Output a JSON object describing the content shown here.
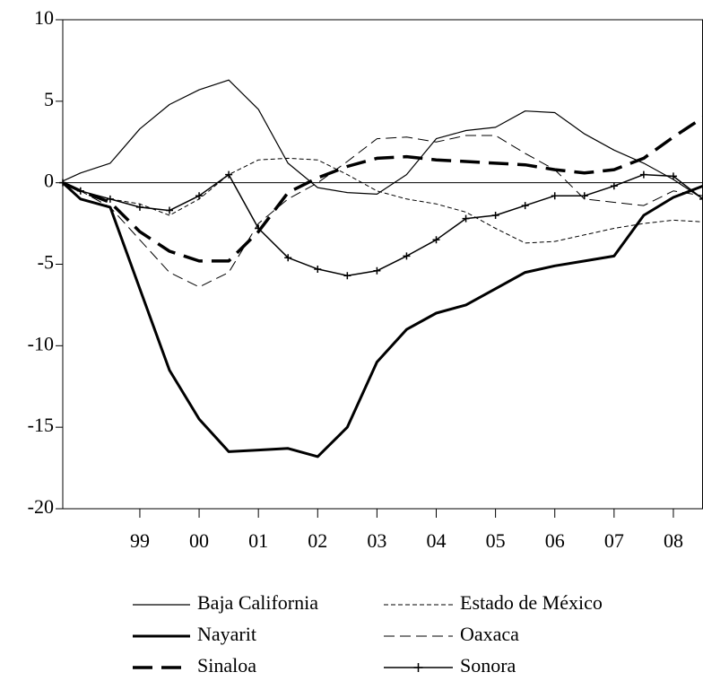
{
  "chart_data": {
    "type": "line",
    "x": [
      1998.2,
      1998.5,
      1999.0,
      1999.5,
      2000.0,
      2000.5,
      2001.0,
      2001.5,
      2002.0,
      2002.5,
      2003.0,
      2003.5,
      2004.0,
      2004.5,
      2005.0,
      2005.5,
      2006.0,
      2006.5,
      2007.0,
      2007.5,
      2008.0,
      2008.5,
      2009.0
    ],
    "xlim": [
      1998.2,
      2009.0
    ],
    "xticks": [
      {
        "value": 1999.5,
        "label": "99"
      },
      {
        "value": 2000.5,
        "label": "00"
      },
      {
        "value": 2001.5,
        "label": "01"
      },
      {
        "value": 2002.5,
        "label": "02"
      },
      {
        "value": 2003.5,
        "label": "03"
      },
      {
        "value": 2004.5,
        "label": "04"
      },
      {
        "value": 2005.5,
        "label": "05"
      },
      {
        "value": 2006.5,
        "label": "06"
      },
      {
        "value": 2007.5,
        "label": "07"
      },
      {
        "value": 2008.5,
        "label": "08"
      }
    ],
    "ylim": [
      -20,
      10
    ],
    "yticks": [
      -20,
      -15,
      -10,
      -5,
      0,
      5,
      10
    ],
    "zero_line": true,
    "series": [
      {
        "name": "Baja California",
        "color": "#000000",
        "width": 1.2,
        "dash": "none",
        "values": [
          0.1,
          0.6,
          1.2,
          3.3,
          4.8,
          5.7,
          6.3,
          4.5,
          1.2,
          -0.3,
          -0.6,
          -0.7,
          0.5,
          2.7,
          3.2,
          3.4,
          4.4,
          4.3,
          3.0,
          2.0,
          1.2,
          0.2,
          -1.0
        ]
      },
      {
        "name": "Estado de México",
        "color": "#000000",
        "width": 1,
        "dash": "5,3",
        "values": [
          0,
          -0.5,
          -1.0,
          -1.3,
          -2.0,
          -1.0,
          0.5,
          1.4,
          1.5,
          1.4,
          0.5,
          -0.5,
          -1.0,
          -1.3,
          -1.8,
          -2.8,
          -3.7,
          -3.6,
          -3.2,
          -2.8,
          -2.5,
          -2.3,
          -2.4
        ]
      },
      {
        "name": "Nayarit",
        "color": "#000000",
        "width": 3,
        "dash": "none",
        "values": [
          0,
          -1.0,
          -1.5,
          -6.5,
          -11.5,
          -14.5,
          -16.5,
          -16.4,
          -16.3,
          -16.8,
          -15.0,
          -11.0,
          -9.0,
          -8.0,
          -7.5,
          -6.5,
          -5.5,
          -5.1,
          -4.8,
          -4.5,
          -2.0,
          -0.9,
          -0.2
        ]
      },
      {
        "name": "Oaxaca",
        "color": "#000000",
        "width": 1,
        "dash": "12,6",
        "values": [
          0,
          -0.5,
          -1.5,
          -3.5,
          -5.5,
          -6.4,
          -5.5,
          -2.5,
          -1.0,
          0.0,
          1.3,
          2.7,
          2.8,
          2.5,
          2.9,
          2.9,
          1.8,
          0.8,
          -1.0,
          -1.2,
          -1.4,
          -0.5,
          -0.8
        ]
      },
      {
        "name": "Sinaloa",
        "color": "#000000",
        "width": 3.5,
        "dash": "22,10",
        "values": [
          0,
          -0.5,
          -1.2,
          -3.0,
          -4.2,
          -4.8,
          -4.8,
          -3.0,
          -0.6,
          0.3,
          1.0,
          1.5,
          1.6,
          1.4,
          1.3,
          1.2,
          1.1,
          0.8,
          0.6,
          0.8,
          1.5,
          2.8,
          4.0
        ]
      },
      {
        "name": "Sonora",
        "color": "#000000",
        "width": 1.5,
        "dash": "none",
        "marker": "plus",
        "values": [
          0,
          -0.5,
          -1.0,
          -1.5,
          -1.7,
          -0.8,
          0.5,
          -2.8,
          -4.6,
          -5.3,
          -5.7,
          -5.4,
          -4.5,
          -3.5,
          -2.2,
          -2.0,
          -1.4,
          -0.8,
          -0.8,
          -0.2,
          0.5,
          0.4,
          -1.0
        ]
      }
    ]
  }
}
